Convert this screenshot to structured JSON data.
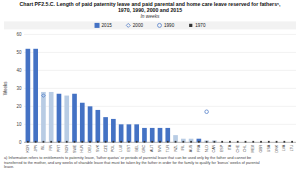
{
  "chart_data": {
    "type": "bar",
    "title": "Chart PF2.5.C.  Length of paid paternity leave and paid parental and home care leave reserved for fathersᵃ,\n1970, 1990, 2000 and 2015",
    "subtitle": "In weeks",
    "y_label": "Weeks",
    "annotations": [
      "a)  Information refers to entitlements to paternity leave, ‘father quotas’ or periods of parental leave that can be used only by the father and cannot be\ntransferred to the mother, and any weeks of sharable leave that must be taken by the father in order for the family to qualify for ‘bonus’ weeks of parental\nleave."
    ],
    "categories": [
      "KOR",
      "JPN",
      "ISL",
      "FIN",
      "PRT",
      "NOR",
      "SWE",
      "HUN",
      "DEU",
      "SVK",
      "CZE",
      "POL",
      "LUX",
      "EST",
      "BEL",
      "GRC",
      "AUT",
      "SVN",
      "TUR",
      "NZL",
      "IRL",
      "AUS",
      "FRA",
      "NLD",
      "CAN",
      "ESP",
      "ITA",
      "CHE",
      "CHL",
      "MEX",
      "GBR",
      "USA",
      "DNK",
      "LVA",
      "LTU"
    ],
    "stacked": true,
    "series": [
      {
        "name": "2015",
        "type": "bar",
        "color": "#4472C4",
        "values": [
          52,
          52,
          0,
          0,
          27,
          0,
          27,
          22,
          20,
          18,
          14,
          13,
          10,
          10,
          10,
          8,
          8,
          8,
          8,
          0,
          0,
          0,
          2,
          0,
          0,
          0,
          0,
          0,
          0,
          0,
          0,
          0,
          0,
          0,
          0
        ]
      },
      {
        "type": "bar",
        "color": "#B8CCE4",
        "values": [
          0,
          0,
          28,
          28,
          0,
          26,
          0,
          0,
          0,
          0,
          0,
          0,
          0,
          0,
          0,
          0,
          0,
          0,
          0,
          4,
          2,
          2,
          0,
          1,
          1,
          0,
          0,
          0,
          0,
          0,
          0,
          0,
          0,
          0,
          0
        ]
      },
      {
        "name": "2000",
        "type": "scatter",
        "color": "#4472C4",
        "marker": "diamond-open",
        "values": [
          null,
          null,
          26,
          null,
          null,
          null,
          null,
          null,
          null,
          null,
          null,
          null,
          null,
          null,
          null,
          null,
          null,
          null,
          null,
          null,
          null,
          null,
          null,
          null,
          null,
          null,
          null,
          null,
          null,
          null,
          null,
          null,
          null,
          null,
          null
        ]
      },
      {
        "name": "1990",
        "type": "scatter",
        "color": "#4472C4",
        "marker": "circle-open",
        "values": [
          null,
          null,
          null,
          null,
          null,
          null,
          null,
          null,
          null,
          null,
          null,
          null,
          null,
          null,
          null,
          null,
          null,
          null,
          null,
          null,
          null,
          null,
          null,
          17,
          null,
          null,
          null,
          null,
          null,
          null,
          null,
          null,
          null,
          null,
          null
        ]
      },
      {
        "name": "1970",
        "type": "scatter",
        "color": "#333333",
        "marker": "square",
        "values": [
          0.3,
          0.3,
          0.3,
          0.3,
          0.3,
          0.3,
          0.3,
          0.3,
          0.3,
          0.3,
          0.3,
          0.3,
          0.3,
          0.3,
          0.3,
          0.3,
          0.3,
          0.3,
          0.3,
          0.3,
          0.3,
          0.3,
          0.3,
          0.3,
          0.3,
          0.3,
          0.3,
          0.3,
          0.3,
          0.3,
          0.3,
          0.3,
          0.3,
          0.3,
          0.3
        ]
      }
    ],
    "ylim": [
      0,
      60
    ],
    "yticks": [
      0,
      10,
      20,
      30,
      40,
      50,
      60
    ],
    "grid": true,
    "legend": "top"
  }
}
